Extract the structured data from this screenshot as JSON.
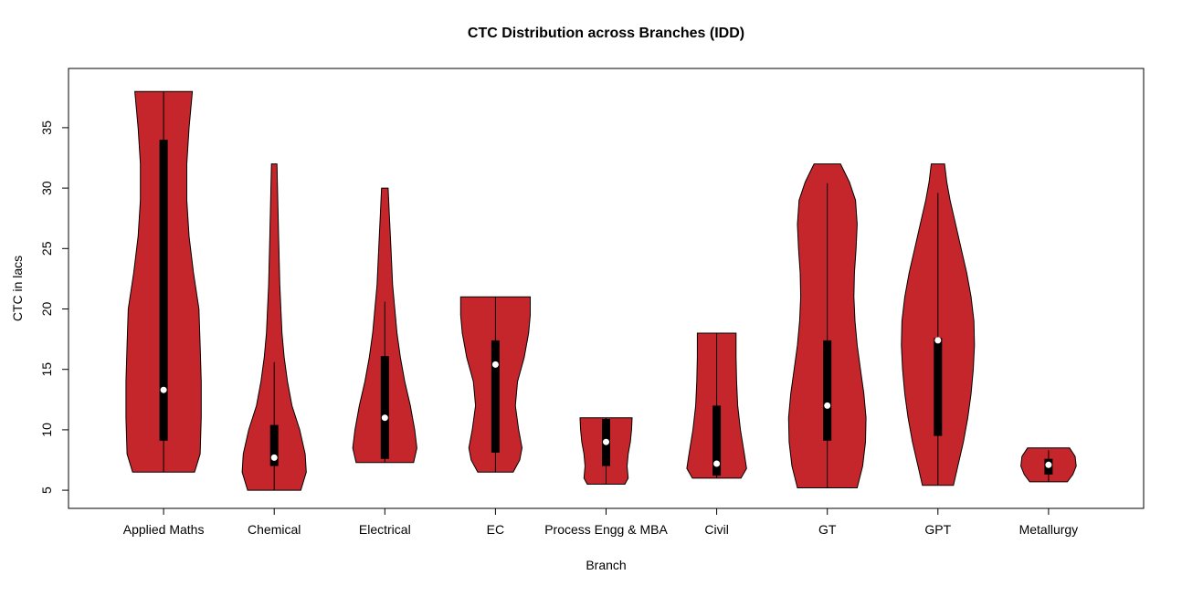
{
  "chart_data": {
    "type": "violin",
    "title": "CTC Distribution across Branches (IDD)",
    "xlabel": "Branch",
    "ylabel": "CTC in lacs",
    "ylim": [
      3.5,
      39.9
    ],
    "yticks": [
      5,
      10,
      15,
      20,
      25,
      30,
      35
    ],
    "grid": false,
    "legend": "none",
    "fill_color": "#C5262B",
    "outline_color": "#000000",
    "categories": [
      "Applied Maths",
      "Chemical",
      "Electrical",
      "EC",
      "Process Engg & MBA",
      "Civil",
      "GT",
      "GPT",
      "Metallurgy"
    ],
    "violins": [
      {
        "branch": "Applied Maths",
        "min": 6.5,
        "max": 38,
        "q1": 9.1,
        "median": 13.3,
        "q3": 34,
        "whisker_low": 6.5,
        "whisker_high": 38,
        "profile": [
          [
            6.5,
            0.28
          ],
          [
            8,
            0.33
          ],
          [
            11,
            0.34
          ],
          [
            14,
            0.34
          ],
          [
            17,
            0.33
          ],
          [
            20,
            0.32
          ],
          [
            23,
            0.27
          ],
          [
            26,
            0.23
          ],
          [
            29,
            0.21
          ],
          [
            32,
            0.21
          ],
          [
            35,
            0.23
          ],
          [
            38,
            0.26
          ]
        ]
      },
      {
        "branch": "Chemical",
        "min": 5,
        "max": 32,
        "q1": 7.0,
        "median": 7.7,
        "q3": 10.4,
        "whisker_low": 5.0,
        "whisker_high": 15.6,
        "profile": [
          [
            5,
            0.24
          ],
          [
            6.5,
            0.29
          ],
          [
            8,
            0.28
          ],
          [
            10,
            0.23
          ],
          [
            12,
            0.16
          ],
          [
            14,
            0.12
          ],
          [
            16,
            0.09
          ],
          [
            18,
            0.07
          ],
          [
            22,
            0.05
          ],
          [
            26,
            0.04
          ],
          [
            30,
            0.03
          ],
          [
            32,
            0.025
          ]
        ]
      },
      {
        "branch": "Electrical",
        "min": 7.3,
        "max": 30,
        "q1": 7.6,
        "median": 11.0,
        "q3": 16.1,
        "whisker_low": 7.3,
        "whisker_high": 20.6,
        "profile": [
          [
            7.3,
            0.26
          ],
          [
            8.5,
            0.29
          ],
          [
            10,
            0.27
          ],
          [
            12,
            0.23
          ],
          [
            14,
            0.18
          ],
          [
            16,
            0.14
          ],
          [
            18,
            0.11
          ],
          [
            20,
            0.09
          ],
          [
            22,
            0.07
          ],
          [
            25,
            0.055
          ],
          [
            28,
            0.04
          ],
          [
            30,
            0.03
          ]
        ]
      },
      {
        "branch": "EC",
        "min": 6.5,
        "max": 21,
        "q1": 8.1,
        "median": 15.4,
        "q3": 17.4,
        "whisker_low": 6.5,
        "whisker_high": 21,
        "profile": [
          [
            6.5,
            0.16
          ],
          [
            7.5,
            0.22
          ],
          [
            8.5,
            0.24
          ],
          [
            10,
            0.21
          ],
          [
            12,
            0.18
          ],
          [
            14,
            0.2
          ],
          [
            16,
            0.26
          ],
          [
            18,
            0.3
          ],
          [
            19.5,
            0.315
          ],
          [
            21,
            0.315
          ]
        ]
      },
      {
        "branch": "Process Engg & MBA",
        "min": 5.5,
        "max": 11,
        "q1": 7.0,
        "median": 9.0,
        "q3": 10.9,
        "whisker_low": 5.5,
        "whisker_high": 11,
        "profile": [
          [
            5.5,
            0.17
          ],
          [
            6,
            0.2
          ],
          [
            7,
            0.19
          ],
          [
            8,
            0.2
          ],
          [
            9,
            0.22
          ],
          [
            10,
            0.23
          ],
          [
            11,
            0.235
          ]
        ]
      },
      {
        "branch": "Civil",
        "min": 6,
        "max": 18,
        "q1": 6.2,
        "median": 7.2,
        "q3": 12.0,
        "whisker_low": 6.0,
        "whisker_high": 18,
        "profile": [
          [
            6,
            0.22
          ],
          [
            6.8,
            0.27
          ],
          [
            8,
            0.25
          ],
          [
            10,
            0.215
          ],
          [
            12,
            0.19
          ],
          [
            14,
            0.18
          ],
          [
            16,
            0.175
          ],
          [
            18,
            0.175
          ]
        ]
      },
      {
        "branch": "GT",
        "min": 5.2,
        "max": 32,
        "q1": 9.1,
        "median": 12.0,
        "q3": 17.4,
        "whisker_low": 5.2,
        "whisker_high": 30.4,
        "profile": [
          [
            5.2,
            0.27
          ],
          [
            7,
            0.32
          ],
          [
            9,
            0.345
          ],
          [
            11,
            0.35
          ],
          [
            13,
            0.33
          ],
          [
            15,
            0.3
          ],
          [
            17,
            0.27
          ],
          [
            19,
            0.25
          ],
          [
            21,
            0.24
          ],
          [
            23,
            0.245
          ],
          [
            25,
            0.26
          ],
          [
            27,
            0.27
          ],
          [
            29,
            0.255
          ],
          [
            30.5,
            0.2
          ],
          [
            32,
            0.12
          ]
        ]
      },
      {
        "branch": "GPT",
        "min": 5.4,
        "max": 32,
        "q1": 9.5,
        "median": 17.4,
        "q3": 17.6,
        "whisker_low": 5.4,
        "whisker_high": 29.6,
        "profile": [
          [
            5.4,
            0.14
          ],
          [
            7,
            0.18
          ],
          [
            9,
            0.23
          ],
          [
            11,
            0.27
          ],
          [
            13,
            0.3
          ],
          [
            15,
            0.32
          ],
          [
            17,
            0.33
          ],
          [
            19,
            0.325
          ],
          [
            21,
            0.3
          ],
          [
            23,
            0.26
          ],
          [
            25,
            0.21
          ],
          [
            27,
            0.16
          ],
          [
            29,
            0.11
          ],
          [
            30.5,
            0.08
          ],
          [
            32,
            0.06
          ]
        ]
      },
      {
        "branch": "Metallurgy",
        "min": 5.7,
        "max": 8.5,
        "q1": 6.3,
        "median": 7.1,
        "q3": 7.6,
        "whisker_low": 5.7,
        "whisker_high": 8.3,
        "profile": [
          [
            5.7,
            0.17
          ],
          [
            6.3,
            0.22
          ],
          [
            7,
            0.25
          ],
          [
            7.8,
            0.24
          ],
          [
            8.5,
            0.19
          ]
        ]
      }
    ]
  }
}
